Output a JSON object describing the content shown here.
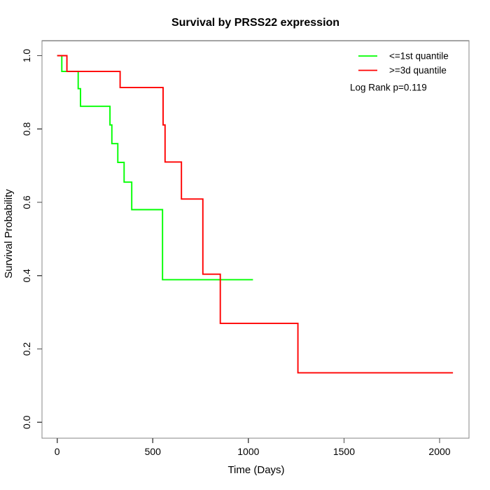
{
  "title": "Survival by PRSS22 expression",
  "chart_data": {
    "type": "line",
    "subtype": "kaplan-meier-step",
    "title": "Survival by PRSS22 expression",
    "xlabel": "Time (Days)",
    "ylabel": "Survival Probability",
    "xlim": [
      -85,
      2155
    ],
    "ylim": [
      -0.04,
      1.04
    ],
    "x_ticks": [
      0,
      500,
      1000,
      1500,
      2000
    ],
    "y_ticks": [
      0.0,
      0.2,
      0.4,
      0.6,
      0.8,
      1.0
    ],
    "y_tick_labels": [
      "0.0",
      "0.2",
      "0.4",
      "0.6",
      "0.8",
      "1.0"
    ],
    "grid": false,
    "legend_position": "top-right",
    "annotation": "Log Rank p=0.119",
    "series": [
      {
        "name": "<=1st quantile",
        "color": "#00ff00",
        "points": [
          [
            0,
            1.0
          ],
          [
            24,
            1.0
          ],
          [
            24,
            0.957
          ],
          [
            110,
            0.957
          ],
          [
            110,
            0.91
          ],
          [
            122,
            0.91
          ],
          [
            122,
            0.862
          ],
          [
            276,
            0.862
          ],
          [
            276,
            0.811
          ],
          [
            286,
            0.811
          ],
          [
            286,
            0.76
          ],
          [
            317,
            0.76
          ],
          [
            317,
            0.709
          ],
          [
            350,
            0.709
          ],
          [
            350,
            0.655
          ],
          [
            390,
            0.655
          ],
          [
            390,
            0.58
          ],
          [
            551,
            0.58
          ],
          [
            551,
            0.389
          ],
          [
            1024,
            0.389
          ]
        ]
      },
      {
        "name": ">=3d quantile",
        "color": "#ff0000",
        "points": [
          [
            0,
            1.0
          ],
          [
            51,
            1.0
          ],
          [
            51,
            0.957
          ],
          [
            329,
            0.957
          ],
          [
            329,
            0.913
          ],
          [
            554,
            0.913
          ],
          [
            554,
            0.811
          ],
          [
            564,
            0.811
          ],
          [
            564,
            0.71
          ],
          [
            650,
            0.71
          ],
          [
            650,
            0.609
          ],
          [
            762,
            0.609
          ],
          [
            762,
            0.404
          ],
          [
            853,
            0.404
          ],
          [
            853,
            0.27
          ],
          [
            1259,
            0.27
          ],
          [
            1259,
            0.135
          ],
          [
            2070,
            0.135
          ]
        ]
      }
    ]
  }
}
